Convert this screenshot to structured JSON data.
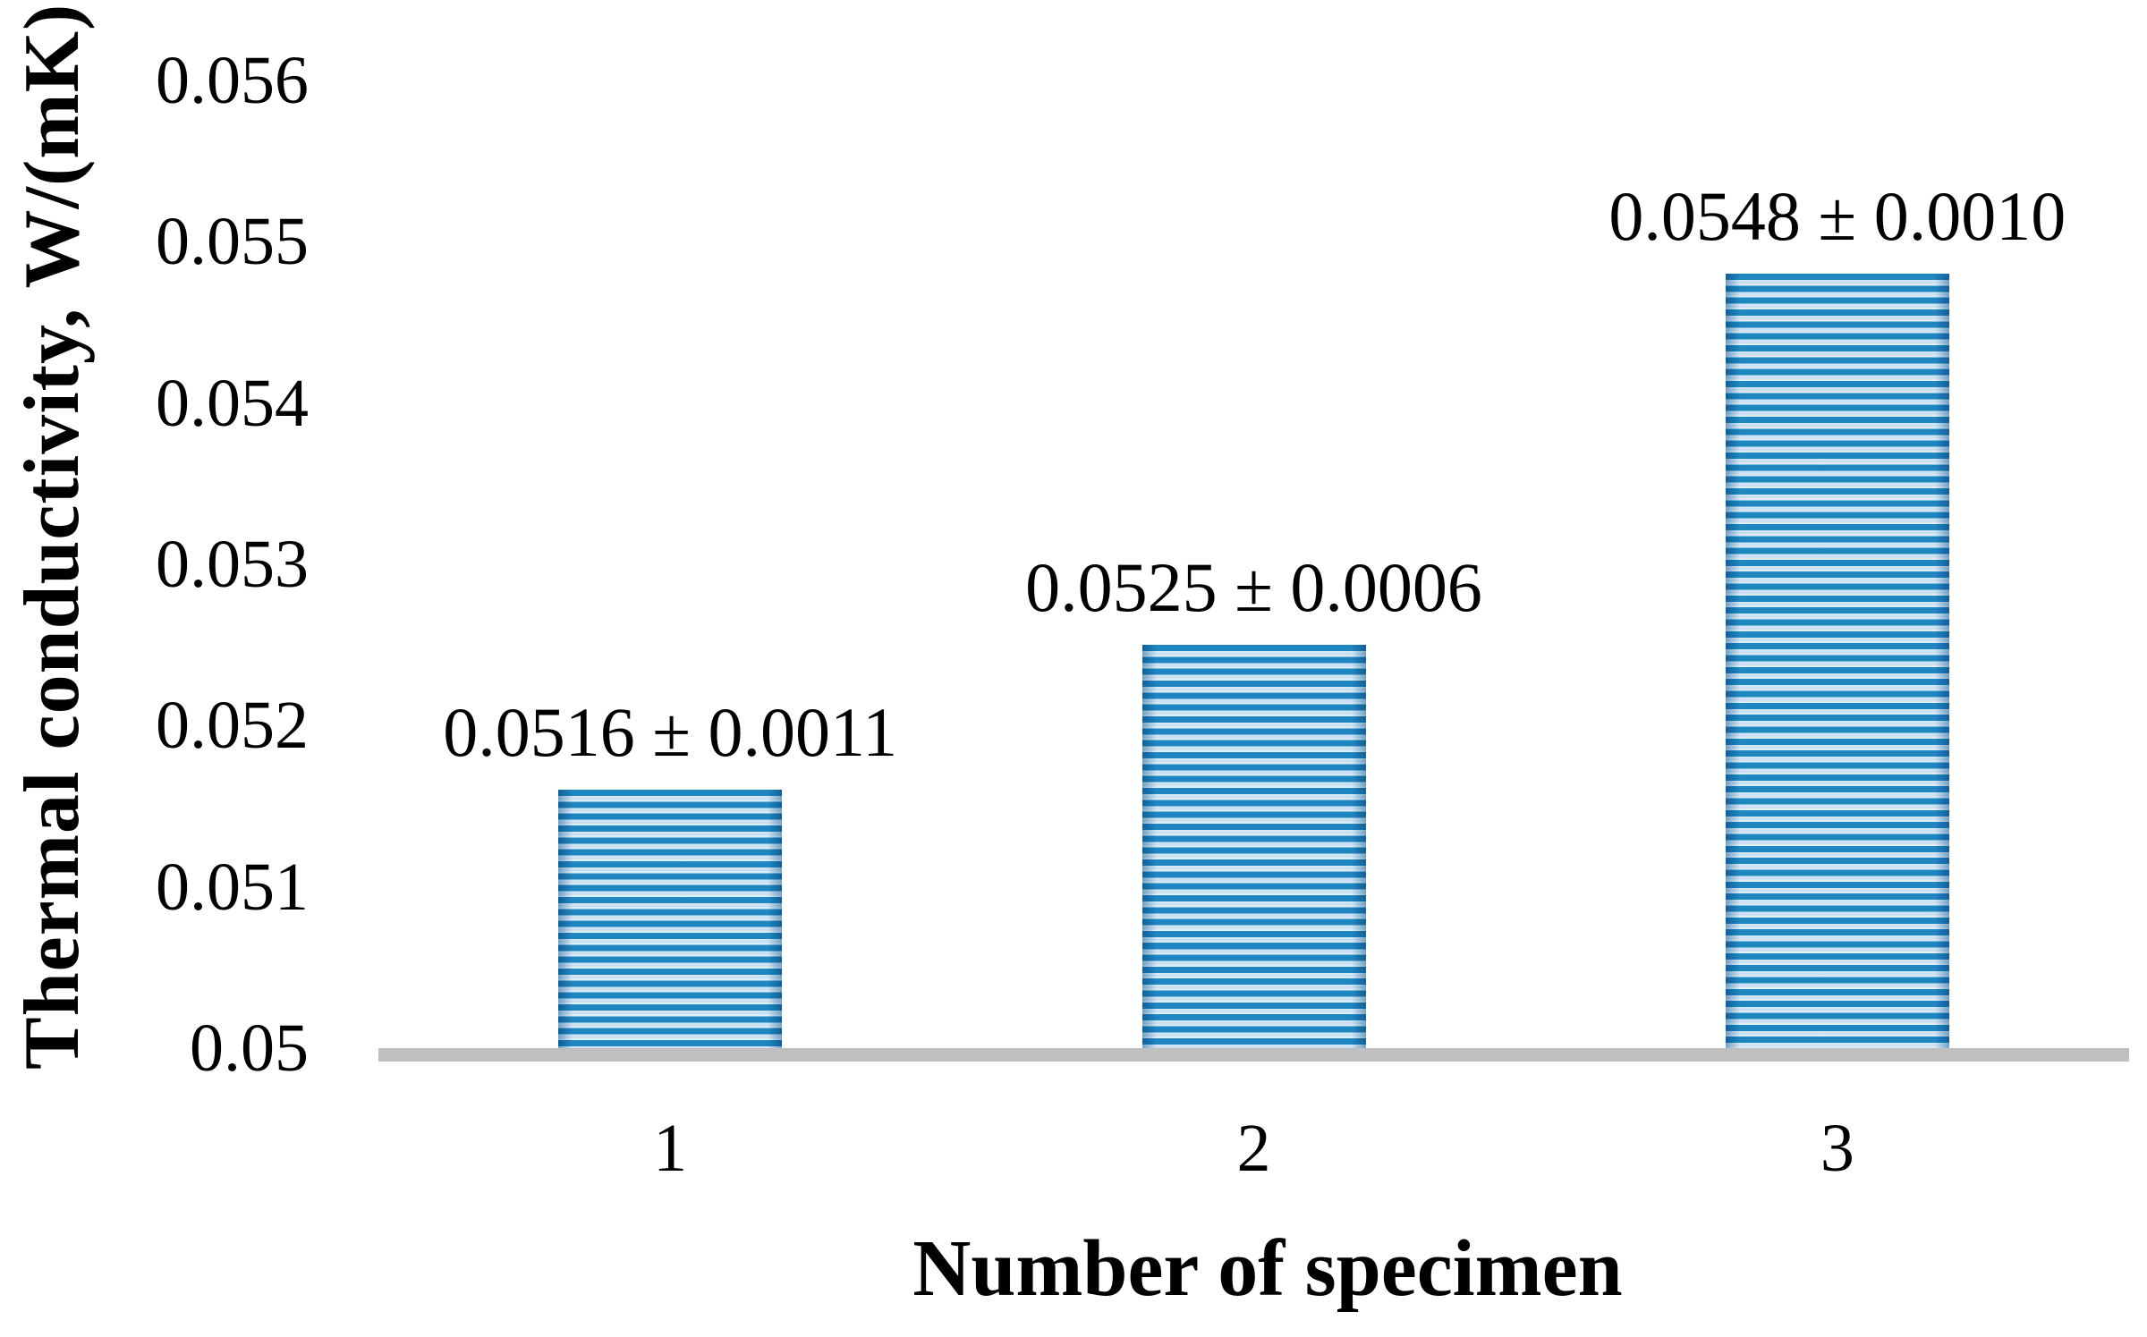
{
  "chart_data": {
    "type": "bar",
    "title": "",
    "xlabel": "Number of specimen",
    "ylabel": "Thermal conductivity, W/(mK)",
    "categories": [
      "1",
      "2",
      "3"
    ],
    "values": [
      0.0516,
      0.0525,
      0.0548
    ],
    "errors": [
      0.0011,
      0.0006,
      0.001
    ],
    "bar_labels": [
      "0.0516 ± 0.0011",
      "0.0525 ± 0.0006",
      "0.0548 ± 0.0010"
    ],
    "yticks": [
      "0.056",
      "0.055",
      "0.054",
      "0.053",
      "0.052",
      "0.051",
      "0.05"
    ],
    "ylim": [
      0.05,
      0.056
    ],
    "grid": false,
    "legend_position": "none",
    "bar_fill_style": "horizontal-stripes",
    "bar_color": "#1E86C1",
    "bar_color_light": "#D9EBF7",
    "axis_line_color": "#BFBFBF",
    "text_color": "#000000"
  }
}
